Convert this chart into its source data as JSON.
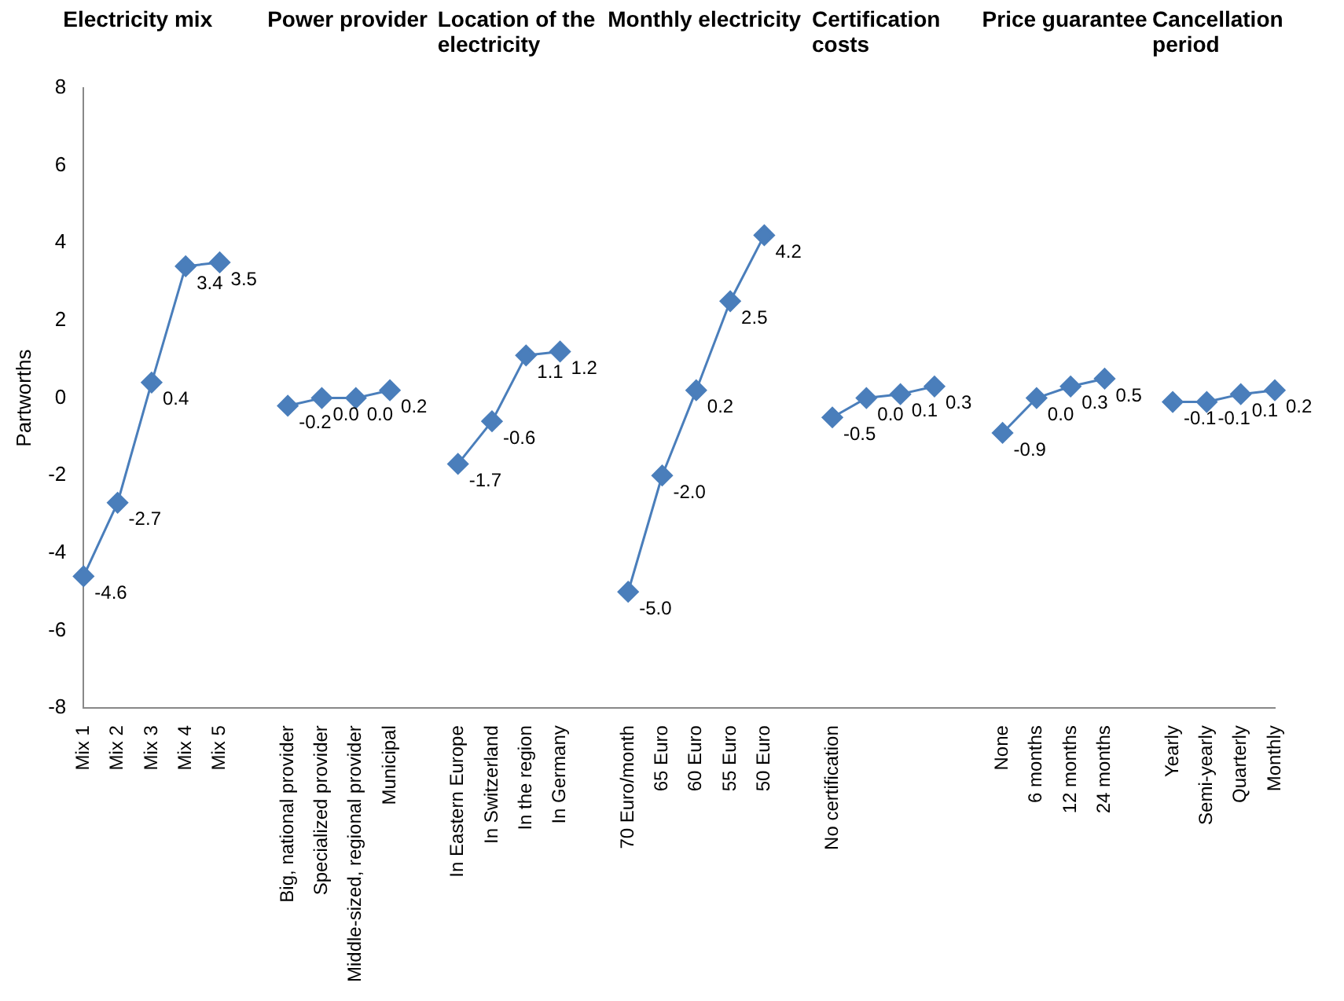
{
  "chart_data": {
    "type": "line",
    "ylabel": "Partworths",
    "annotations": [
      "Electricity mix",
      "Power provider",
      "Location of the electricity",
      "Monthly electricity",
      "Certification costs",
      "Price guarantee",
      "Cancellation period"
    ],
    "categories": [
      "Mix 1",
      "Mix 2",
      "Mix 3",
      "Mix 4",
      "Mix 5",
      null,
      "Big, national provider",
      "Specialized provider",
      "Middle-sized, regional provider",
      "Municipal",
      null,
      "In Eastern Europe",
      "In Switzerland",
      "In the region",
      "In Germany",
      null,
      "70 Euro/month",
      "65 Euro",
      "60 Euro",
      "55 Euro",
      "50 Euro",
      null,
      "No certification",
      null,
      null,
      null,
      null,
      "None",
      "6 months",
      "12 months",
      "24 months",
      null,
      "Yearly",
      "Semi-yearly",
      "Quarterly",
      "Monthly"
    ],
    "series": [
      {
        "color": "#4a7ebb",
        "values": [
          -4.6,
          -2.7,
          0.4,
          3.4,
          3.5,
          null,
          null,
          null,
          null,
          null,
          null,
          null,
          null,
          null,
          null,
          null,
          null,
          null,
          null,
          null,
          null,
          null,
          null,
          null,
          null,
          null,
          null,
          null,
          null,
          null,
          null,
          null,
          null,
          null,
          null,
          null
        ],
        "value_labels": [
          "-4.6",
          "-2.7",
          "0.4",
          "3.4",
          "3.5",
          null,
          null,
          null,
          null,
          null,
          null,
          null,
          null,
          null,
          null,
          null,
          null,
          null,
          null,
          null,
          null,
          null,
          null,
          null,
          null,
          null,
          null,
          null,
          null,
          null,
          null,
          null,
          null,
          null,
          null,
          null
        ]
      },
      {
        "color": "#4a7ebb",
        "values": [
          null,
          null,
          null,
          null,
          null,
          null,
          -0.2,
          0.0,
          0.0,
          0.2,
          null,
          null,
          null,
          null,
          null,
          null,
          null,
          null,
          null,
          null,
          null,
          null,
          null,
          null,
          null,
          null,
          null,
          null,
          null,
          null,
          null,
          null,
          null,
          null,
          null,
          null
        ],
        "value_labels": [
          null,
          null,
          null,
          null,
          null,
          null,
          "-0.2",
          "0.0",
          "0.0",
          "0.2",
          null,
          null,
          null,
          null,
          null,
          null,
          null,
          null,
          null,
          null,
          null,
          null,
          null,
          null,
          null,
          null,
          null,
          null,
          null,
          null,
          null,
          null,
          null,
          null,
          null,
          null
        ]
      },
      {
        "color": "#4a7ebb",
        "values": [
          null,
          null,
          null,
          null,
          null,
          null,
          null,
          null,
          null,
          null,
          null,
          -1.7,
          -0.6,
          1.1,
          1.2,
          null,
          null,
          null,
          null,
          null,
          null,
          null,
          null,
          null,
          null,
          null,
          null,
          null,
          null,
          null,
          null,
          null,
          null,
          null,
          null,
          null
        ],
        "value_labels": [
          null,
          null,
          null,
          null,
          null,
          null,
          null,
          null,
          null,
          null,
          null,
          "-1.7",
          "-0.6",
          "1.1",
          "1.2",
          null,
          null,
          null,
          null,
          null,
          null,
          null,
          null,
          null,
          null,
          null,
          null,
          null,
          null,
          null,
          null,
          null,
          null,
          null,
          null,
          null
        ]
      },
      {
        "color": "#4a7ebb",
        "values": [
          null,
          null,
          null,
          null,
          null,
          null,
          null,
          null,
          null,
          null,
          null,
          null,
          null,
          null,
          null,
          null,
          -5.0,
          -2.0,
          0.2,
          2.5,
          4.2,
          null,
          null,
          null,
          null,
          null,
          null,
          null,
          null,
          null,
          null,
          null,
          null,
          null,
          null,
          null
        ],
        "value_labels": [
          null,
          null,
          null,
          null,
          null,
          null,
          null,
          null,
          null,
          null,
          null,
          null,
          null,
          null,
          null,
          null,
          "-5.0",
          "-2.0",
          "0.2",
          "2.5",
          "4.2",
          null,
          null,
          null,
          null,
          null,
          null,
          null,
          null,
          null,
          null,
          null,
          null,
          null,
          null,
          null
        ]
      },
      {
        "color": "#4a7ebb",
        "values": [
          null,
          null,
          null,
          null,
          null,
          null,
          null,
          null,
          null,
          null,
          null,
          null,
          null,
          null,
          null,
          null,
          null,
          null,
          null,
          null,
          null,
          null,
          -0.5,
          0.0,
          0.1,
          0.3,
          null,
          null,
          null,
          null,
          null,
          null,
          null,
          null,
          null,
          null
        ],
        "value_labels": [
          null,
          null,
          null,
          null,
          null,
          null,
          null,
          null,
          null,
          null,
          null,
          null,
          null,
          null,
          null,
          null,
          null,
          null,
          null,
          null,
          null,
          null,
          "-0.5",
          "0.0",
          "0.1",
          "0.3",
          null,
          null,
          null,
          null,
          null,
          null,
          null,
          null,
          null,
          null
        ]
      },
      {
        "color": "#4a7ebb",
        "values": [
          null,
          null,
          null,
          null,
          null,
          null,
          null,
          null,
          null,
          null,
          null,
          null,
          null,
          null,
          null,
          null,
          null,
          null,
          null,
          null,
          null,
          null,
          null,
          null,
          null,
          null,
          null,
          -0.9,
          0.0,
          0.3,
          0.5,
          null,
          null,
          null,
          null,
          null
        ],
        "value_labels": [
          null,
          null,
          null,
          null,
          null,
          null,
          null,
          null,
          null,
          null,
          null,
          null,
          null,
          null,
          null,
          null,
          null,
          null,
          null,
          null,
          null,
          null,
          null,
          null,
          null,
          null,
          null,
          "-0.9",
          "0.0",
          "0.3",
          "0.5",
          null,
          null,
          null,
          null,
          null
        ]
      },
      {
        "color": "#4a7ebb",
        "values": [
          null,
          null,
          null,
          null,
          null,
          null,
          null,
          null,
          null,
          null,
          null,
          null,
          null,
          null,
          null,
          null,
          null,
          null,
          null,
          null,
          null,
          null,
          null,
          null,
          null,
          null,
          null,
          null,
          null,
          null,
          null,
          null,
          -0.1,
          -0.1,
          0.1,
          0.2
        ],
        "value_labels": [
          null,
          null,
          null,
          null,
          null,
          null,
          null,
          null,
          null,
          null,
          null,
          null,
          null,
          null,
          null,
          null,
          null,
          null,
          null,
          null,
          null,
          null,
          null,
          null,
          null,
          null,
          null,
          null,
          null,
          null,
          null,
          null,
          "-0.1",
          "-0.1",
          "0.1",
          "0.2"
        ]
      }
    ],
    "ylim": [
      -8,
      8
    ],
    "yticks": [
      -8,
      -6,
      -4,
      -2,
      0,
      2,
      4,
      6,
      8
    ],
    "grid": false,
    "legend": false,
    "marker": "diamond",
    "line_style": "solid"
  }
}
